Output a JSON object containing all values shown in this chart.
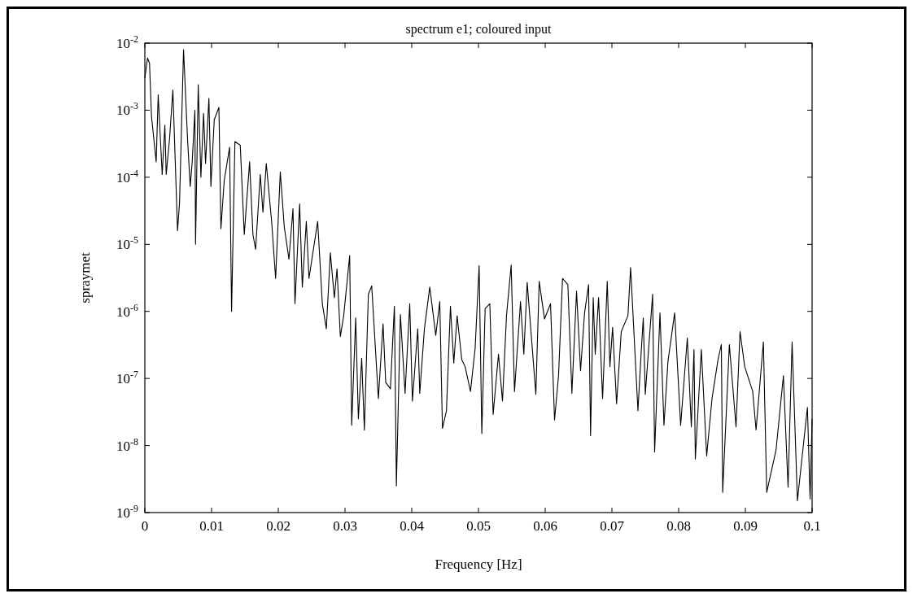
{
  "chart_data": {
    "type": "line",
    "title": "spectrum e1; coloured input",
    "xlabel": "Frequency [Hz]",
    "ylabel": "spraymet",
    "log": "y",
    "grid": false,
    "marker": "none",
    "line_style": "solid",
    "xlim": [
      0,
      0.1
    ],
    "xticks": [
      0,
      0.01,
      0.02,
      0.03,
      0.04,
      0.05,
      0.06,
      0.07,
      0.08,
      0.09,
      0.1
    ],
    "ylim": [
      1e-09,
      0.01
    ],
    "yticks": [
      {
        "value": 1e-09,
        "label": "10$^{-9}$"
      },
      {
        "value": 1e-08,
        "label": "10$^{-8}$"
      },
      {
        "value": 1e-07,
        "label": "10$^{-7}$"
      },
      {
        "value": 1e-06,
        "label": "10$^{-6}$"
      },
      {
        "value": 1e-05,
        "label": "10$^{-5}$"
      },
      {
        "value": 0.0001,
        "label": "10$^{-4}$"
      },
      {
        "value": 0.001,
        "label": "10$^{-3}$"
      },
      {
        "value": 0.01,
        "label": "10$^{-2}$"
      }
    ],
    "series": [
      {
        "color": "#000000",
        "x": [
          0,
          0.0004,
          0.0007,
          0.001,
          0.0017,
          0.002,
          0.0026,
          0.003,
          0.0032,
          0.0037,
          0.0042,
          0.0049,
          0.0052,
          0.0058,
          0.0064,
          0.0068,
          0.0071,
          0.0075,
          0.0076,
          0.008,
          0.0084,
          0.0088,
          0.0091,
          0.0096,
          0.0099,
          0.0104,
          0.0111,
          0.0114,
          0.0119,
          0.0127,
          0.013,
          0.0135,
          0.0143,
          0.0149,
          0.0157,
          0.0162,
          0.0166,
          0.0173,
          0.0177,
          0.0182,
          0.019,
          0.0196,
          0.0203,
          0.0209,
          0.0216,
          0.0222,
          0.0225,
          0.0232,
          0.0236,
          0.0242,
          0.0246,
          0.0259,
          0.0266,
          0.0272,
          0.0278,
          0.0284,
          0.0288,
          0.0293,
          0.0298,
          0.0307,
          0.031,
          0.0316,
          0.032,
          0.0325,
          0.0329,
          0.0335,
          0.034,
          0.035,
          0.0357,
          0.0361,
          0.0368,
          0.0374,
          0.0377,
          0.0383,
          0.039,
          0.0397,
          0.0401,
          0.0409,
          0.0412,
          0.0419,
          0.0427,
          0.0436,
          0.0442,
          0.0446,
          0.0452,
          0.0458,
          0.0463,
          0.0468,
          0.0475,
          0.048,
          0.0488,
          0.0495,
          0.0501,
          0.0505,
          0.051,
          0.0517,
          0.0522,
          0.053,
          0.0536,
          0.0542,
          0.0549,
          0.0554,
          0.0563,
          0.0568,
          0.0573,
          0.0586,
          0.0591,
          0.0599,
          0.0608,
          0.0614,
          0.062,
          0.0626,
          0.0634,
          0.064,
          0.0647,
          0.0653,
          0.0659,
          0.0665,
          0.0668,
          0.0672,
          0.0675,
          0.068,
          0.0686,
          0.0693,
          0.0697,
          0.0701,
          0.0707,
          0.0714,
          0.0724,
          0.0728,
          0.0739,
          0.0744,
          0.0747,
          0.075,
          0.0761,
          0.0764,
          0.0772,
          0.0778,
          0.0784,
          0.0794,
          0.0803,
          0.0813,
          0.0819,
          0.0823,
          0.0825,
          0.0834,
          0.0842,
          0.085,
          0.0859,
          0.0864,
          0.0866,
          0.0876,
          0.0886,
          0.0892,
          0.0899,
          0.0911,
          0.0916,
          0.0927,
          0.0932,
          0.0946,
          0.0957,
          0.0964,
          0.097,
          0.0978,
          0.0993,
          0.0997,
          0.1
        ],
        "values": [
          0.003,
          0.006,
          0.005,
          0.0008,
          0.00017,
          0.0017,
          0.00011,
          0.0006,
          0.00011,
          0.00037,
          0.002,
          1.6e-05,
          4.2e-05,
          0.008,
          0.00037,
          7.3e-05,
          0.00017,
          0.001,
          1e-05,
          0.0024,
          0.0001,
          0.0009,
          0.00016,
          0.0015,
          7.3e-05,
          0.00072,
          0.0011,
          1.7e-05,
          9e-05,
          0.00028,
          1e-06,
          0.00034,
          0.0003,
          1.4e-05,
          0.00017,
          1.4e-05,
          8.4e-06,
          0.00011,
          3e-05,
          0.00016,
          2.2e-05,
          3.1e-06,
          0.00012,
          1.8e-05,
          6e-06,
          3.4e-05,
          1.3e-06,
          4e-05,
          2.3e-06,
          2.2e-05,
          3.1e-06,
          2.2e-05,
          1.3e-06,
          5.5e-07,
          7.5e-06,
          1.6e-06,
          4.3e-06,
          4.2e-07,
          8.6e-07,
          6.8e-06,
          2e-08,
          8e-07,
          2.5e-08,
          2e-07,
          1.7e-08,
          1.8e-06,
          2.4e-06,
          5e-08,
          6.5e-07,
          8.7e-08,
          7e-08,
          1.2e-06,
          2.5e-09,
          9e-07,
          6e-08,
          1.3e-06,
          4.6e-08,
          5.5e-07,
          6e-08,
          5.5e-07,
          2.3e-06,
          4.4e-07,
          1.4e-06,
          1.8e-08,
          3.3e-08,
          1.2e-06,
          1.7e-07,
          8.6e-07,
          1.9e-07,
          1.5e-07,
          6.4e-08,
          2.8e-07,
          4.8e-06,
          1.5e-08,
          1.1e-06,
          1.3e-06,
          2.9e-08,
          2.3e-07,
          4.6e-08,
          8.6e-07,
          4.9e-06,
          6.4e-08,
          1.4e-06,
          2.3e-07,
          2.7e-06,
          5.8e-08,
          2.8e-06,
          7.7e-07,
          1.3e-06,
          2.4e-08,
          1.1e-07,
          3.1e-06,
          2.5e-06,
          6e-08,
          2e-06,
          1.3e-07,
          9.5e-07,
          2.5e-06,
          1.4e-08,
          1.6e-06,
          2.3e-07,
          1.6e-06,
          5e-08,
          2.8e-06,
          1.5e-07,
          5.8e-07,
          4.2e-08,
          5e-07,
          8.6e-07,
          4.5e-06,
          3.3e-08,
          2.6e-07,
          8e-07,
          5.8e-08,
          1.8e-06,
          8e-09,
          9.5e-07,
          2e-08,
          1.8e-07,
          9.5e-07,
          2e-08,
          4e-07,
          1.9e-08,
          2.7e-07,
          6.3e-09,
          2.7e-07,
          7e-09,
          5e-08,
          1.9e-07,
          3.2e-07,
          2e-09,
          3.2e-07,
          1.9e-08,
          5e-07,
          1.5e-07,
          6.4e-08,
          1.7e-08,
          3.5e-07,
          2e-09,
          8.6e-09,
          1.1e-07,
          2.4e-09,
          3.5e-07,
          1.5e-09,
          3.7e-08,
          1.6e-09,
          2.5e-08
        ]
      }
    ]
  }
}
